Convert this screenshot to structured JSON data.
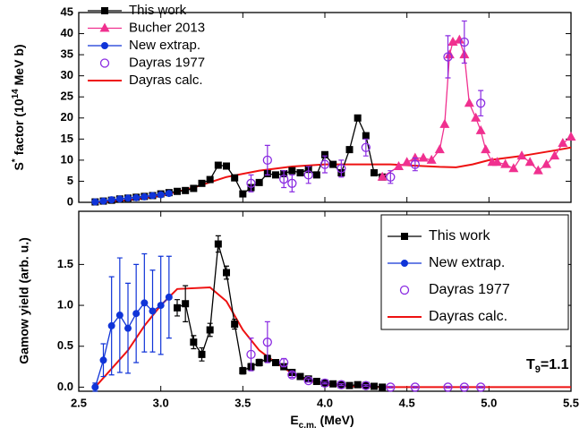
{
  "chart_data": [
    {
      "type": "line",
      "ylabel": {
        "main": "S",
        "prime": "*",
        "text": " factor (10",
        "sup": "14",
        "unit": " MeV b)"
      },
      "xlim": [
        2.5,
        5.5
      ],
      "xticks": [
        2.5,
        3,
        3.5,
        4,
        4.5,
        5,
        5.5
      ],
      "ylim": [
        0,
        45
      ],
      "yticks": [
        0,
        5,
        10,
        15,
        20,
        25,
        30,
        35,
        40,
        45
      ],
      "legend": "upper left",
      "legend_frame": false,
      "series": [
        {
          "name": "Dayras calc.",
          "color": "#ee1111",
          "marker": "none",
          "line": true,
          "x": [
            2.6,
            2.8,
            3.0,
            3.2,
            3.4,
            3.6,
            3.8,
            4.0,
            4.2,
            4.4,
            4.6,
            4.7,
            4.8,
            4.9,
            5.0,
            5.2,
            5.4,
            5.5
          ],
          "values": [
            0,
            0.5,
            1.5,
            3.5,
            6,
            7.5,
            8.5,
            9,
            9,
            9,
            8.6,
            8.4,
            8.3,
            9,
            10,
            11,
            12.3,
            13
          ]
        },
        {
          "name": "This work",
          "color": "#000000",
          "marker": "square",
          "line": true,
          "x": [
            2.6,
            2.65,
            2.7,
            2.75,
            2.8,
            2.85,
            2.9,
            2.95,
            3.0,
            3.05,
            3.1,
            3.15,
            3.2,
            3.25,
            3.3,
            3.35,
            3.4,
            3.45,
            3.5,
            3.55,
            3.6,
            3.65,
            3.7,
            3.75,
            3.8,
            3.85,
            3.9,
            3.95,
            4.0,
            4.05,
            4.1,
            4.15,
            4.2,
            4.25,
            4.3,
            4.35
          ],
          "values": [
            0.1,
            0.3,
            0.5,
            0.8,
            1.0,
            1.2,
            1.4,
            1.6,
            2.0,
            2.3,
            2.6,
            2.8,
            3.3,
            4.5,
            5.4,
            8.8,
            8.6,
            5.8,
            2.0,
            3.5,
            4.7,
            6.8,
            6.5,
            6.8,
            7.5,
            7.0,
            7.8,
            6.5,
            11.3,
            9.0,
            7.0,
            12.5,
            20.0,
            15.8,
            7.0,
            6.0
          ]
        },
        {
          "name": "Bucher 2013",
          "color": "#f0308f",
          "marker": "triangle",
          "line": true,
          "x": [
            4.35,
            4.45,
            4.5,
            4.55,
            4.6,
            4.65,
            4.7,
            4.73,
            4.76,
            4.78,
            4.82,
            4.85,
            4.88,
            4.92,
            4.95,
            4.98,
            5.02,
            5.05,
            5.1,
            5.15,
            5.2,
            5.25,
            5.3,
            5.35,
            5.4,
            5.45,
            5.5
          ],
          "values": [
            6.0,
            8.5,
            9.5,
            10.5,
            10.5,
            10.0,
            12.5,
            18.5,
            35.0,
            38.0,
            38.5,
            35.0,
            23.5,
            20.0,
            17.0,
            12.5,
            9.5,
            9.5,
            9.0,
            8.0,
            11.0,
            9.5,
            7.5,
            9.0,
            11.0,
            14.0,
            15.5
          ]
        },
        {
          "name": "New extrap.",
          "color": "#1034d8",
          "marker": "circle",
          "line": true,
          "x": [
            2.6,
            2.65,
            2.7,
            2.75,
            2.8,
            2.85,
            2.9,
            2.95,
            3.0,
            3.05
          ],
          "values": [
            0.1,
            0.3,
            0.6,
            0.8,
            1.0,
            1.1,
            1.3,
            1.6,
            1.8,
            2.1
          ]
        },
        {
          "name": "Dayras 1977",
          "color": "#8a2be2",
          "marker": "open-circle",
          "line": false,
          "x": [
            3.55,
            3.65,
            3.75,
            3.8,
            3.9,
            4.0,
            4.1,
            4.25,
            4.4,
            4.55,
            4.75,
            4.85,
            4.95
          ],
          "values": [
            4.5,
            10,
            5.5,
            4.5,
            6.5,
            9.0,
            8.0,
            13.0,
            6.0,
            9.0,
            34.5,
            38.0,
            23.5
          ],
          "errors": [
            2,
            3.5,
            2,
            2,
            2,
            2,
            2,
            2,
            1.5,
            1.5,
            5,
            5,
            3
          ]
        }
      ]
    },
    {
      "type": "line",
      "xlabel": {
        "main": "E",
        "sub": "c.m.",
        "unit": " (MeV)"
      },
      "ylabel": "Gamow yield (arb. u.)",
      "annotation": {
        "main": "T",
        "sub": "9",
        "text": "=1.1"
      },
      "xlim": [
        2.5,
        5.5
      ],
      "xticks": [
        2.5,
        {
          "value": 3,
          "label": "3.0"
        },
        3.5,
        {
          "value": 4,
          "label": "4.0"
        },
        4.5,
        {
          "value": 5,
          "label": "5.0"
        },
        5.5
      ],
      "ylim": [
        -0.05,
        2.15
      ],
      "yticks": [
        {
          "value": 0,
          "label": "0.0"
        },
        0.5,
        {
          "value": 1,
          "label": "1.0"
        },
        1.5
      ],
      "legend": "upper right",
      "legend_frame": true,
      "series": [
        {
          "name": "Dayras calc.",
          "color": "#ee1111",
          "marker": "none",
          "line": true,
          "x": [
            2.6,
            2.8,
            2.9,
            3.0,
            3.1,
            3.3,
            3.4,
            3.5,
            3.6,
            3.7,
            3.8,
            3.9,
            4.0,
            4.2,
            4.4,
            5.5
          ],
          "values": [
            0,
            0.45,
            0.75,
            1.0,
            1.2,
            1.22,
            1.05,
            0.7,
            0.45,
            0.3,
            0.17,
            0.08,
            0.03,
            0.005,
            0,
            0
          ]
        },
        {
          "name": "This work",
          "color": "#000000",
          "marker": "square",
          "line": true,
          "x": [
            3.1,
            3.15,
            3.2,
            3.25,
            3.3,
            3.35,
            3.4,
            3.45,
            3.5,
            3.55,
            3.6,
            3.65,
            3.7,
            3.75,
            3.8,
            3.85,
            3.9,
            3.95,
            4.0,
            4.05,
            4.1,
            4.15,
            4.2,
            4.25,
            4.3,
            4.35
          ],
          "values": [
            0.97,
            1.02,
            0.55,
            0.4,
            0.7,
            1.75,
            1.4,
            0.77,
            0.2,
            0.25,
            0.3,
            0.35,
            0.3,
            0.25,
            0.18,
            0.13,
            0.1,
            0.07,
            0.05,
            0.04,
            0.03,
            0.02,
            0.03,
            0.02,
            0.01,
            0
          ],
          "errors": [
            0.1,
            0.22,
            0.08,
            0.08,
            0.08,
            0.1,
            0.08,
            0.06,
            0.04,
            0.04,
            0.04,
            0.04,
            0.03,
            0.03,
            0.02,
            0.02,
            0.02,
            0.02,
            0.01,
            0.01,
            0.01,
            0.01,
            0.01,
            0.01,
            0.01,
            0.01
          ]
        },
        {
          "name": "New extrap.",
          "color": "#1034d8",
          "marker": "circle",
          "line": true,
          "x": [
            2.6,
            2.65,
            2.7,
            2.75,
            2.8,
            2.85,
            2.9,
            2.95,
            3.0,
            3.05
          ],
          "values": [
            0,
            0.33,
            0.75,
            0.88,
            0.72,
            0.9,
            1.03,
            0.93,
            1.0,
            1.1
          ],
          "errors": [
            0.05,
            0.2,
            0.6,
            0.7,
            0.55,
            0.6,
            0.6,
            0.5,
            0.6,
            0.5
          ]
        },
        {
          "name": "Dayras 1977",
          "color": "#8a2be2",
          "marker": "open-circle",
          "line": false,
          "x": [
            3.55,
            3.65,
            3.75,
            3.8,
            3.9,
            4.0,
            4.1,
            4.25,
            4.4,
            4.55,
            4.75,
            4.85,
            4.95
          ],
          "values": [
            0.4,
            0.55,
            0.3,
            0.15,
            0.08,
            0.05,
            0.03,
            0.02,
            0,
            0,
            0,
            0,
            0
          ],
          "errors": [
            0.2,
            0.25,
            0.05,
            0.03,
            0.02,
            0.01,
            0.01,
            0.01,
            0.01,
            0.01,
            0.01,
            0.01,
            0.01
          ]
        }
      ]
    }
  ]
}
